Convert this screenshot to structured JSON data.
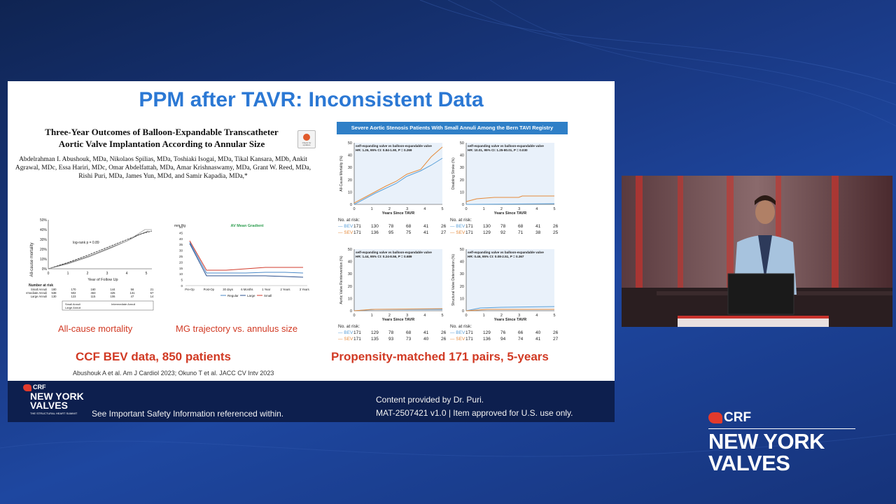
{
  "slide": {
    "title": "PPM after TAVR: Inconsistent Data",
    "paper_title": "Three-Year Outcomes of Balloon-Expandable Transcatheter Aortic Valve Implantation According to Annular Size",
    "paper_authors": "Abdelrahman I. Abushouk, MDa, Nikolaos Spilias, MDa, Toshiaki Isogai, MDa, Tikal Kansara, MDb, Ankit Agrawal, MDc, Essa Hariri, MDc, Omar Abdelfattah, MDa, Amar Krishnaswamy, MDa, Grant W. Reed, MDa, Rishi Puri, MDa, James Yun, MDd, and Samir Kapadia, MDa,*",
    "check_badge": "Check for updates",
    "left_chart1": {
      "ylabel": "All-cause mortality",
      "xlabel": "Year of Follow Up",
      "logrank": "log-rank p = 0.89",
      "yticks": [
        "0%",
        "10%",
        "20%",
        "30%",
        "40%",
        "50%"
      ],
      "xticks": [
        "0",
        "1",
        "2",
        "3",
        "4",
        "5"
      ],
      "risk_header": "Number at risk",
      "risk_rows": [
        {
          "label": "Small Annuli",
          "vals": [
            "180",
            "170",
            "160",
            "144",
            "56",
            "21"
          ]
        },
        {
          "label": "Intermediate Annuli",
          "vals": [
            "538",
            "502",
            "463",
            "425",
            "131",
            "57"
          ]
        },
        {
          "label": "Large Annuli",
          "vals": [
            "130",
            "123",
            "115",
            "106",
            "47",
            "14"
          ]
        }
      ],
      "legend": [
        "Small Annuli",
        "Intermediate Annuli",
        "Large Annuli"
      ]
    },
    "left_chart2": {
      "title": "AV Mean Gradient",
      "unit": "mm Hg",
      "yticks": [
        "0",
        "5",
        "10",
        "15",
        "20",
        "25",
        "30",
        "35",
        "40",
        "45",
        "50"
      ],
      "xticks": [
        "Pre-Op",
        "Post-Op",
        "30 days",
        "6 Months",
        "1 Year",
        "2 Years",
        "3 Years"
      ],
      "legend": [
        "Regular",
        "Large",
        "Small"
      ]
    },
    "caption_mortality": "All-cause mortality",
    "caption_mg": "MG trajectory vs. annulus size",
    "left_headline": "CCF BEV data, 850 patients",
    "references": "Abushouk A et al. Am J Cardiol 2023; Okuno T et al. JACC CV Intv 2023",
    "bern_banner": "Severe Aortic Stenosis Patients With Small Annuli Among the Bern TAVI Registry",
    "panels": [
      {
        "ylabel": "All-Cause Mortality (%)",
        "hr1": "self-expanding valve vs balloon-expandable valve",
        "hr2": "HR: 1.26, 95% CI: 0.84-1.90, P = 0.269",
        "xlabel": "Years Since TAVR",
        "bev": [
          "171",
          "130",
          "78",
          "68",
          "41",
          "26"
        ],
        "sev": [
          "171",
          "136",
          "95",
          "75",
          "41",
          "27"
        ]
      },
      {
        "ylabel": "Disabling Stroke (%)",
        "hr1": "self-expanding valve vs balloon-expandable valve",
        "hr2": "HR: 10.01, 95% CI: 1.25-80.01, P = 0.030",
        "xlabel": "Years Since TAVR",
        "bev": [
          "171",
          "130",
          "78",
          "68",
          "41",
          "26"
        ],
        "sev": [
          "171",
          "129",
          "92",
          "71",
          "38",
          "25"
        ]
      },
      {
        "ylabel": "Aortic Valve Reintervention (%)",
        "hr1": "self-expanding valve vs balloon-expandable valve",
        "hr2": "HR: 1.44, 95% CI: 0.24-8.56, P = 0.689",
        "xlabel": "Years Since TAVR",
        "bev": [
          "171",
          "129",
          "78",
          "68",
          "41",
          "26"
        ],
        "sev": [
          "171",
          "135",
          "93",
          "73",
          "40",
          "26"
        ]
      },
      {
        "ylabel": "Structural Valve Deterioration (%)",
        "hr1": "self-expanding valve vs balloon-expandable valve",
        "hr2": "HR: 0.46, 95% CI: 0.08-2.51, P = 0.367",
        "xlabel": "Years Since TAVR",
        "bev": [
          "171",
          "129",
          "76",
          "66",
          "40",
          "26"
        ],
        "sev": [
          "171",
          "136",
          "94",
          "74",
          "41",
          "27"
        ]
      }
    ],
    "risk_title": "No. at risk:",
    "bev_label": "BEV",
    "sev_label": "SEV",
    "right_headline": "Propensity-matched 171 pairs, 5-years",
    "footer": {
      "crf": "CRF",
      "ny_line1": "NEW YORK",
      "ny_line2": "VALVES",
      "tagline": "THE STRUCTURAL HEART SUMMIT",
      "safety": "See Important Safety Information referenced within.",
      "provided": "Content provided by Dr. Puri.",
      "mat": "MAT-2507421 v1.0 | Item approved for U.S. use only."
    }
  },
  "brand": {
    "crf": "CRF",
    "line1": "NEW YORK",
    "line2": "VALVES"
  },
  "colors": {
    "title_blue": "#2b78d4",
    "accent_red": "#d13a24",
    "bev_blue": "#5aa0d8",
    "sev_orange": "#e58a3a",
    "footer_navy": "#0d1f4e"
  }
}
